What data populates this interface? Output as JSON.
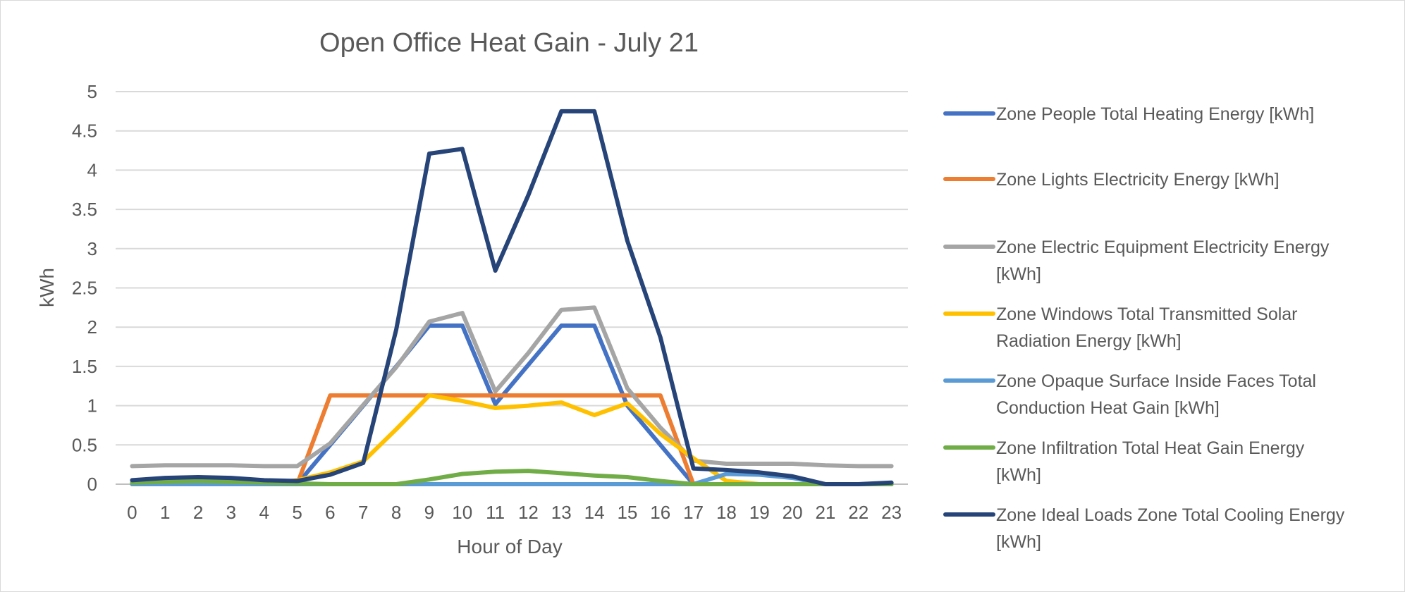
{
  "chart_data": {
    "type": "line",
    "title": "Open Office Heat Gain - July 21",
    "xlabel": "Hour of Day",
    "ylabel": "kWh",
    "x": [
      0,
      1,
      2,
      3,
      4,
      5,
      6,
      7,
      8,
      9,
      10,
      11,
      12,
      13,
      14,
      15,
      16,
      17,
      18,
      19,
      20,
      21,
      22,
      23
    ],
    "x_tick_labels": [
      "0",
      "1",
      "2",
      "3",
      "4",
      "5",
      "6",
      "7",
      "8",
      "9",
      "10",
      "11",
      "12",
      "13",
      "14",
      "15",
      "16",
      "17",
      "18",
      "19",
      "20",
      "21",
      "22",
      "23"
    ],
    "ylim": [
      0,
      5
    ],
    "y_ticks": [
      0,
      0.5,
      1,
      1.5,
      2,
      2.5,
      3,
      3.5,
      4,
      4.5,
      5
    ],
    "y_tick_labels": [
      "0",
      "0.5",
      "1",
      "1.5",
      "2",
      "2.5",
      "3",
      "3.5",
      "4",
      "4.5",
      "5"
    ],
    "grid": "horizontal",
    "legend_position": "right",
    "series": [
      {
        "name": "Zone People Total Heating Energy [kWh]",
        "name_lines": [
          "Zone People Total Heating Energy [kWh]"
        ],
        "color": "#4472C4",
        "values": [
          0,
          0,
          0,
          0,
          0,
          0,
          0.5,
          1.0,
          1.5,
          2.02,
          2.02,
          1.02,
          1.52,
          2.02,
          2.02,
          1.0,
          0.5,
          0,
          0,
          0,
          0,
          0,
          0,
          0
        ]
      },
      {
        "name": "Zone Lights Electricity Energy [kWh]",
        "name_lines": [
          "Zone Lights Electricity Energy [kWh]"
        ],
        "color": "#ED7D31",
        "values": [
          0,
          0,
          0,
          0,
          0,
          0,
          1.13,
          1.13,
          1.13,
          1.13,
          1.13,
          1.13,
          1.13,
          1.13,
          1.13,
          1.13,
          1.13,
          0,
          0,
          0,
          0,
          0,
          0,
          0
        ]
      },
      {
        "name": "Zone Electric Equipment Electricity Energy [kWh]",
        "name_lines": [
          "Zone Electric Equipment Electricity Energy",
          "[kWh]"
        ],
        "color": "#A5A5A5",
        "values": [
          0.23,
          0.24,
          0.24,
          0.24,
          0.23,
          0.23,
          0.52,
          1.01,
          1.49,
          2.07,
          2.18,
          1.18,
          1.67,
          2.22,
          2.25,
          1.22,
          0.72,
          0.3,
          0.26,
          0.26,
          0.26,
          0.24,
          0.23,
          0.23
        ]
      },
      {
        "name": "Zone Windows Total Transmitted Solar Radiation Energy [kWh]",
        "name_lines": [
          "Zone Windows Total Transmitted Solar",
          "Radiation Energy [kWh]"
        ],
        "color": "#FFC000",
        "values": [
          0,
          0,
          0,
          0,
          0,
          0.05,
          0.15,
          0.29,
          0.7,
          1.13,
          1.06,
          0.97,
          1.0,
          1.04,
          0.88,
          1.03,
          0.64,
          0.33,
          0.04,
          0,
          0,
          0,
          0,
          0
        ]
      },
      {
        "name": "Zone Opaque Surface Inside Faces Total Conduction Heat Gain [kWh]",
        "name_lines": [
          "Zone Opaque Surface Inside Faces Total",
          "Conduction Heat Gain [kWh]"
        ],
        "color": "#5B9BD5",
        "values": [
          0,
          0,
          0,
          0,
          0,
          0,
          0,
          0,
          0,
          0,
          0,
          0,
          0,
          0,
          0,
          0,
          0,
          0,
          0.13,
          0.12,
          0.08,
          0,
          0,
          0
        ]
      },
      {
        "name": "Zone Infiltration Total Heat Gain Energy [kWh]",
        "name_lines": [
          "Zone Infiltration Total Heat Gain Energy",
          "[kWh]"
        ],
        "color": "#70AD47",
        "values": [
          0.02,
          0.03,
          0.04,
          0.03,
          0.02,
          0.01,
          0,
          0,
          0,
          0.06,
          0.13,
          0.16,
          0.17,
          0.14,
          0.11,
          0.09,
          0.04,
          0,
          0,
          0,
          0,
          0,
          0,
          0
        ]
      },
      {
        "name": "Zone Ideal Loads Zone Total Cooling Energy [kWh]",
        "name_lines": [
          "Zone Ideal Loads Zone Total Cooling Energy",
          "[kWh]"
        ],
        "color": "#264478",
        "values": [
          0.05,
          0.08,
          0.09,
          0.08,
          0.05,
          0.04,
          0.12,
          0.27,
          1.97,
          4.21,
          4.27,
          2.72,
          3.68,
          4.75,
          4.75,
          3.1,
          1.87,
          0.2,
          0.18,
          0.15,
          0.1,
          0,
          0,
          0.02
        ]
      }
    ]
  }
}
